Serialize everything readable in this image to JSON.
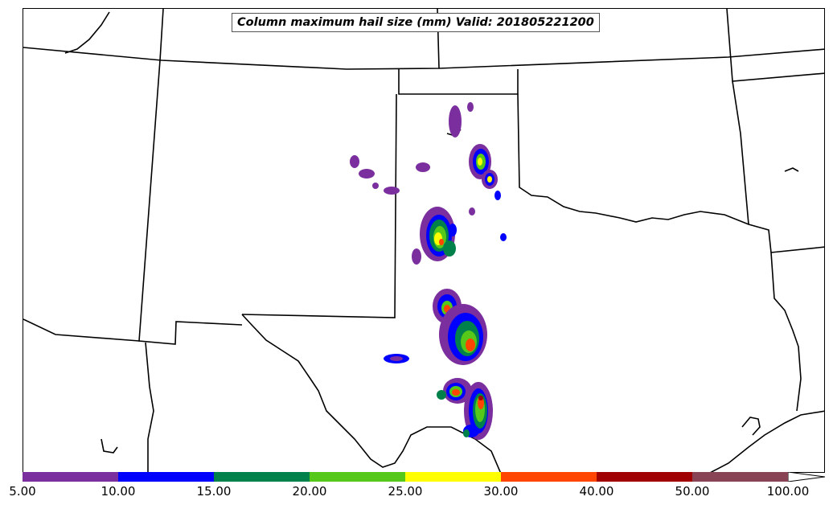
{
  "title": "Column maximum hail size (mm) Valid: 201805221200",
  "legend": {
    "bins": [
      {
        "from": "5.00",
        "color": "#7b2e9e"
      },
      {
        "from": "10.00",
        "color": "#0000ff"
      },
      {
        "from": "15.00",
        "color": "#00804a"
      },
      {
        "from": "20.00",
        "color": "#55c81a"
      },
      {
        "from": "25.00",
        "color": "#ffff00"
      },
      {
        "from": "30.00",
        "color": "#ff4500"
      },
      {
        "from": "40.00",
        "color": "#a00000"
      },
      {
        "from": "50.00",
        "color": "#884455"
      }
    ],
    "labels": [
      "5.00",
      "10.00",
      "15.00",
      "20.00",
      "25.00",
      "30.00",
      "40.00",
      "50.00",
      "100.00"
    ],
    "extend_color": "#ffffff"
  }
}
